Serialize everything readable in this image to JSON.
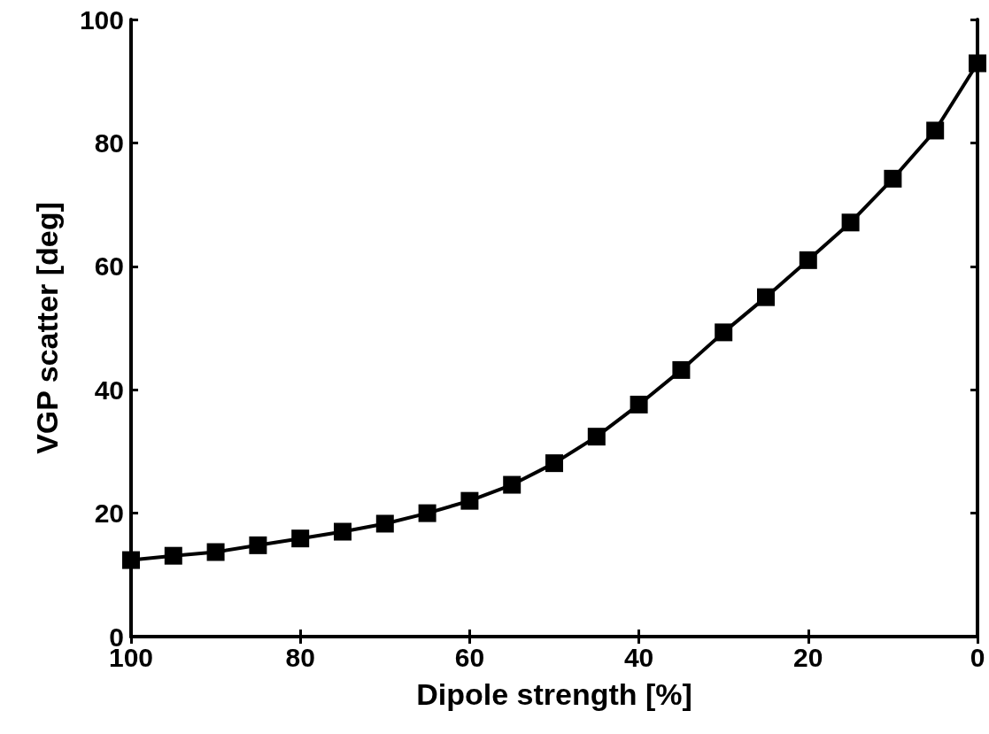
{
  "chart_data": {
    "type": "line",
    "xlabel": "Dipole strength [%]",
    "ylabel": "VGP scatter [deg]",
    "x": [
      100,
      95,
      90,
      85,
      80,
      75,
      70,
      65,
      60,
      55,
      50,
      45,
      40,
      35,
      30,
      25,
      20,
      15,
      10,
      5,
      0
    ],
    "series": [
      {
        "color": "#000000",
        "values": [
          12.4,
          13.1,
          13.7,
          14.8,
          15.9,
          17.0,
          18.3,
          20.0,
          22.0,
          24.6,
          28.1,
          32.4,
          37.6,
          43.2,
          49.3,
          55.0,
          61.0,
          67.1,
          74.2,
          82.0,
          92.9
        ]
      }
    ],
    "xlim": [
      100,
      0
    ],
    "xticks": [
      100,
      80,
      60,
      40,
      20,
      0
    ],
    "ylim": [
      0,
      100
    ],
    "yticks": [
      0,
      20,
      40,
      60,
      80,
      100
    ],
    "grid": false,
    "marker": "square",
    "line_style": "solid"
  }
}
